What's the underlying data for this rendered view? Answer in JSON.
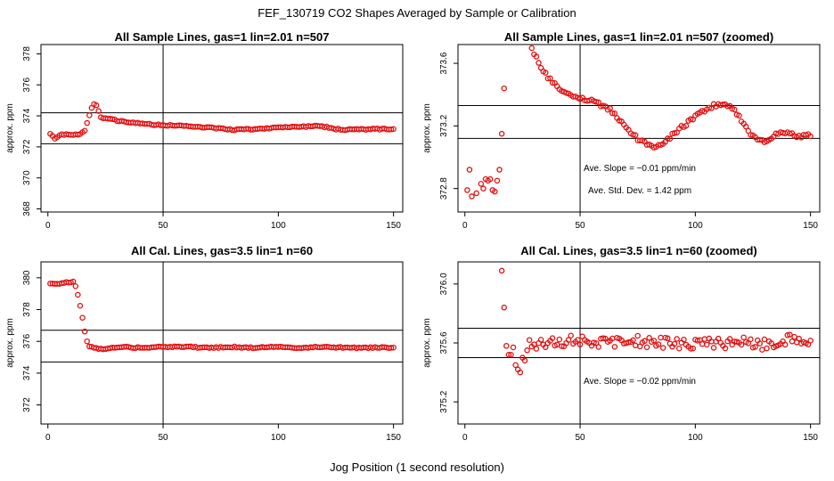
{
  "figure": {
    "title": "FEF_130719  CO2 Shapes Averaged by Sample or Calibration",
    "xlabel": "Jog Position (1 second resolution)"
  },
  "colors": {
    "points": "#e01010",
    "lines": "#000000",
    "background": "#ffffff"
  },
  "chart_data": [
    {
      "type": "scatter",
      "title": "All Sample Lines, gas=1 lin=2.01 n=507",
      "ylabel": "approx. ppm",
      "xlim": [
        -3,
        154
      ],
      "ylim": [
        367.8,
        378.6
      ],
      "xticks": [
        0,
        50,
        100,
        150
      ],
      "xtick_labels": [
        "0",
        "50",
        "100",
        "150"
      ],
      "yticks": [
        368,
        370,
        372,
        374,
        376,
        378
      ],
      "ytick_labels": [
        "368",
        "370",
        "372",
        "374",
        "376",
        "378"
      ],
      "hlines": [
        374.2,
        372.2
      ],
      "vlines": [
        50
      ],
      "annotations": [],
      "keypoints": [
        [
          1,
          372.8
        ],
        [
          2,
          372.75
        ],
        [
          3,
          372.5
        ],
        [
          4,
          372.6
        ],
        [
          5,
          372.7
        ],
        [
          6,
          372.8
        ],
        [
          10,
          372.8
        ],
        [
          12,
          372.78
        ],
        [
          14,
          372.85
        ],
        [
          16,
          373.0
        ],
        [
          17,
          373.5
        ],
        [
          18,
          374.0
        ],
        [
          19,
          374.5
        ],
        [
          20,
          374.8
        ],
        [
          21,
          374.7
        ],
        [
          22,
          374.3
        ],
        [
          23,
          373.9
        ],
        [
          25,
          373.85
        ],
        [
          30,
          373.7
        ],
        [
          40,
          373.5
        ],
        [
          50,
          373.4
        ],
        [
          60,
          373.35
        ],
        [
          70,
          373.25
        ],
        [
          80,
          373.1
        ],
        [
          90,
          373.15
        ],
        [
          100,
          373.25
        ],
        [
          110,
          373.3
        ],
        [
          115,
          373.35
        ],
        [
          120,
          373.3
        ],
        [
          125,
          373.15
        ],
        [
          130,
          373.1
        ],
        [
          140,
          373.15
        ],
        [
          150,
          373.15
        ]
      ]
    },
    {
      "type": "scatter",
      "title": "All Sample Lines, gas=1 lin=2.01 n=507 (zoomed)",
      "ylabel": "approx. ppm",
      "xlim": [
        -3,
        154
      ],
      "ylim": [
        372.65,
        373.72
      ],
      "xticks": [
        0,
        50,
        100,
        150
      ],
      "xtick_labels": [
        "0",
        "50",
        "100",
        "150"
      ],
      "yticks": [
        372.8,
        373.2,
        373.6
      ],
      "ytick_labels": [
        "372.8",
        "373.2",
        "373.6"
      ],
      "hlines": [
        373.33,
        373.12
      ],
      "vlines": [
        50
      ],
      "annotations": [
        "Ave. Slope =  −0.01  ppm/min",
        "Ave. Std. Dev. =  1.42  ppm"
      ],
      "extra_points": [
        [
          1,
          372.79
        ],
        [
          2,
          372.92
        ],
        [
          3,
          372.75
        ],
        [
          5,
          372.77
        ],
        [
          7,
          372.83
        ],
        [
          8,
          372.8
        ],
        [
          9,
          372.86
        ],
        [
          10,
          372.85
        ],
        [
          11,
          372.86
        ],
        [
          12,
          372.79
        ],
        [
          13,
          372.78
        ],
        [
          14,
          372.85
        ],
        [
          15,
          372.92
        ],
        [
          16,
          373.15
        ],
        [
          17,
          373.44
        ]
      ],
      "keypoints": [
        [
          29,
          373.7
        ],
        [
          30,
          373.67
        ],
        [
          32,
          373.6
        ],
        [
          35,
          373.53
        ],
        [
          40,
          373.45
        ],
        [
          45,
          373.4
        ],
        [
          50,
          373.37
        ],
        [
          55,
          373.36
        ],
        [
          60,
          373.33
        ],
        [
          65,
          373.28
        ],
        [
          70,
          373.18
        ],
        [
          75,
          373.12
        ],
        [
          80,
          373.07
        ],
        [
          85,
          373.08
        ],
        [
          90,
          373.14
        ],
        [
          95,
          373.2
        ],
        [
          100,
          373.26
        ],
        [
          105,
          373.31
        ],
        [
          110,
          373.34
        ],
        [
          115,
          373.33
        ],
        [
          120,
          373.24
        ],
        [
          125,
          373.13
        ],
        [
          130,
          373.1
        ],
        [
          135,
          373.15
        ],
        [
          140,
          373.16
        ],
        [
          145,
          373.13
        ],
        [
          150,
          373.14
        ]
      ]
    },
    {
      "type": "scatter",
      "title": "All Cal. Lines, gas=3.5 lin=1 n=60",
      "ylabel": "approx. ppm",
      "xlim": [
        -3,
        154
      ],
      "ylim": [
        370.8,
        381.0
      ],
      "xticks": [
        0,
        50,
        100,
        150
      ],
      "xtick_labels": [
        "0",
        "50",
        "100",
        "150"
      ],
      "yticks": [
        372,
        374,
        376,
        378,
        380
      ],
      "ytick_labels": [
        "372",
        "374",
        "376",
        "378",
        "380"
      ],
      "hlines": [
        376.7,
        374.7
      ],
      "vlines": [
        50
      ],
      "annotations": [],
      "keypoints": [
        [
          1,
          379.6
        ],
        [
          3,
          379.6
        ],
        [
          5,
          379.65
        ],
        [
          8,
          379.7
        ],
        [
          11,
          379.75
        ],
        [
          12,
          379.5
        ],
        [
          13,
          378.9
        ],
        [
          14,
          378.2
        ],
        [
          15,
          377.5
        ],
        [
          16,
          376.6
        ],
        [
          17,
          376.0
        ],
        [
          18,
          375.7
        ],
        [
          20,
          375.6
        ],
        [
          22,
          375.5
        ],
        [
          25,
          375.55
        ],
        [
          30,
          375.65
        ],
        [
          40,
          375.6
        ],
        [
          50,
          375.65
        ],
        [
          60,
          375.65
        ],
        [
          70,
          375.6
        ],
        [
          80,
          375.65
        ],
        [
          90,
          375.6
        ],
        [
          100,
          375.65
        ],
        [
          110,
          375.6
        ],
        [
          120,
          375.65
        ],
        [
          130,
          375.6
        ],
        [
          140,
          375.6
        ],
        [
          150,
          375.6
        ]
      ]
    },
    {
      "type": "scatter",
      "title": "All Cal. Lines, gas=3.5 lin=1 n=60 (zoomed)",
      "ylabel": "approx. ppm",
      "xlim": [
        -3,
        154
      ],
      "ylim": [
        375.05,
        376.15
      ],
      "xticks": [
        0,
        50,
        100,
        150
      ],
      "xtick_labels": [
        "0",
        "50",
        "100",
        "150"
      ],
      "yticks": [
        375.2,
        375.6,
        376.0
      ],
      "ytick_labels": [
        "375.2",
        "375.6",
        "376.0"
      ],
      "hlines": [
        375.7,
        375.5
      ],
      "vlines": [
        50
      ],
      "annotations": [
        "Ave. Slope =  −0.02  ppm/min"
      ],
      "extra_points": [
        [
          16,
          376.09
        ],
        [
          17,
          375.84
        ],
        [
          18,
          375.58
        ],
        [
          19,
          375.52
        ],
        [
          20,
          375.52
        ],
        [
          21,
          375.57
        ],
        [
          22,
          375.45
        ],
        [
          23,
          375.42
        ],
        [
          24,
          375.4
        ],
        [
          25,
          375.5
        ],
        [
          26,
          375.48
        ],
        [
          27,
          375.55
        ],
        [
          28,
          375.62
        ]
      ],
      "keypoints": [
        [
          29,
          375.58
        ],
        [
          40,
          375.6
        ],
        [
          50,
          375.62
        ],
        [
          60,
          375.6
        ],
        [
          70,
          375.62
        ],
        [
          80,
          375.6
        ],
        [
          90,
          375.6
        ],
        [
          100,
          375.59
        ],
        [
          110,
          375.6
        ],
        [
          120,
          375.6
        ],
        [
          130,
          375.59
        ],
        [
          140,
          375.62
        ],
        [
          150,
          375.61
        ]
      ]
    }
  ]
}
